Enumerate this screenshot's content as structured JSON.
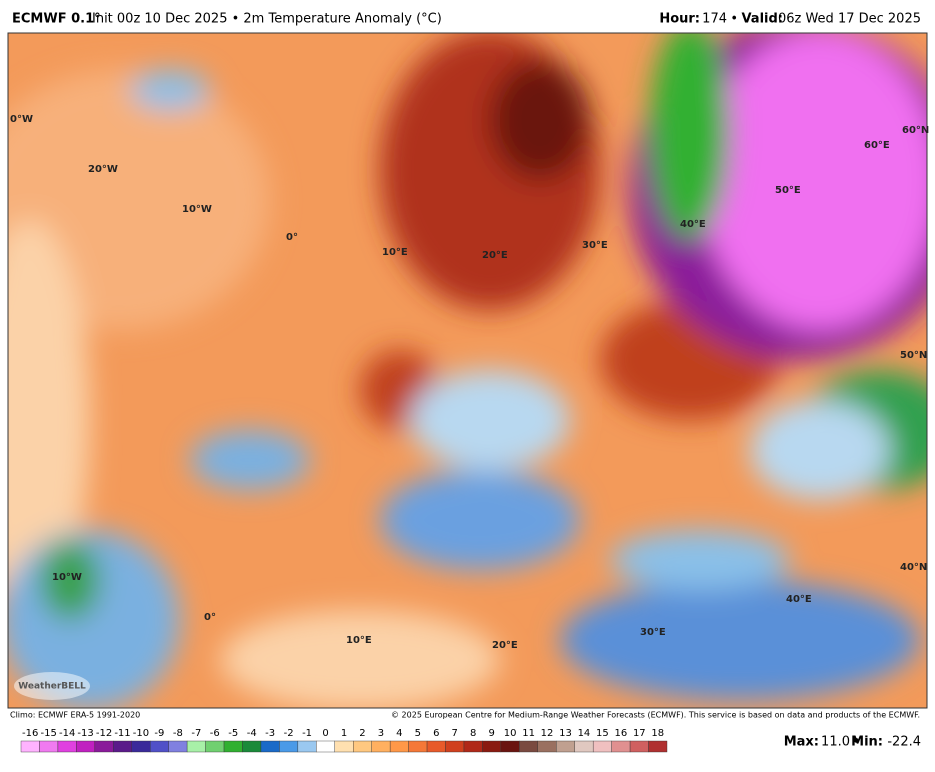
{
  "header": {
    "model": "ECMWF 0.1°",
    "description": "Init 00z 10 Dec 2025 • 2m Temperature Anomaly (°C)",
    "hour_label": "Hour:",
    "hour": "174",
    "separator": "•",
    "valid_label": "Valid:",
    "valid": "06z Wed 17 Dec 2025"
  },
  "map": {
    "grid_labels": [
      "0°W",
      "20°W",
      "10°W",
      "0°",
      "10°E",
      "20°E",
      "30°E",
      "40°E",
      "50°E",
      "60°E",
      "60°N",
      "50°N",
      "10°W",
      "0°",
      "10°E",
      "20°E",
      "30°E",
      "40°E",
      "40°N"
    ],
    "watermark": "WeatherBELL"
  },
  "footer": {
    "climo": "Climo: ECMWF ERA-5 1991-2020",
    "credit": "© 2025 European Centre for Medium-Range Weather Forecasts (ECMWF). This service is based on data and products of the ECMWF.",
    "max_label": "Max:",
    "max": "11.0",
    "min_label": "Min:",
    "min": "-22.4"
  },
  "colorbar": {
    "labels": [
      -16,
      -15,
      -14,
      -13,
      -12,
      -11,
      -10,
      -9,
      -8,
      -7,
      -6,
      -5,
      -4,
      -3,
      -2,
      -1,
      0,
      1,
      2,
      3,
      4,
      5,
      6,
      7,
      8,
      9,
      10,
      11,
      12,
      13,
      14,
      15,
      16,
      17,
      18
    ],
    "colors": [
      "#ffb3ff",
      "#f07af0",
      "#e040e0",
      "#c020c0",
      "#8a1a9a",
      "#5a1a8a",
      "#3a2a9a",
      "#5050c8",
      "#8080e0",
      "#a8f0a8",
      "#70d070",
      "#30b030",
      "#1a8a3a",
      "#1a6ac8",
      "#4a9ae8",
      "#9ac8f0",
      "#ffffff",
      "#ffe0b0",
      "#ffc880",
      "#ffb060",
      "#ff9848",
      "#f57838",
      "#e85a2a",
      "#d0401e",
      "#b02818",
      "#8a1a10",
      "#6a1410",
      "#7a4a40",
      "#9a7060",
      "#c0a090",
      "#e0c8c0",
      "#f0c0c0",
      "#e09090",
      "#d06060",
      "#b03030"
    ]
  }
}
